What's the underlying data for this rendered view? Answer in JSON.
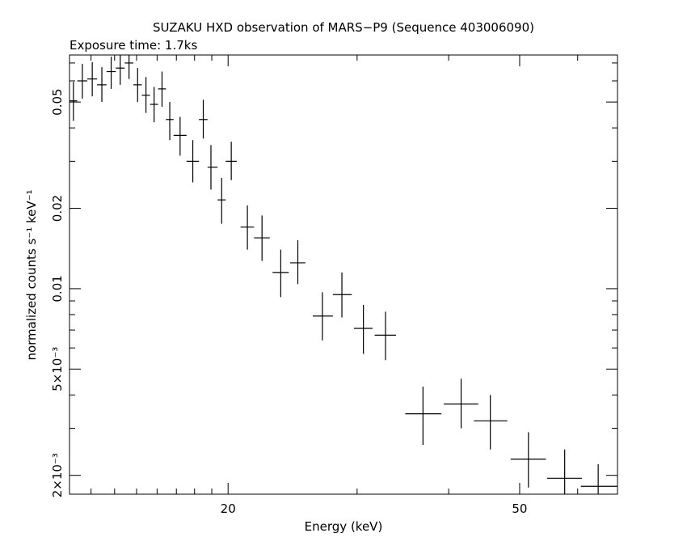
{
  "chart_data": {
    "type": "scatter",
    "title": "SUZAKU HXD observation of MARS−P9 (Sequence 403006090)",
    "subtitle": "Exposure time: 1.7ks",
    "xlabel": "Energy (keV)",
    "ylabel": "normalized counts s⁻¹ keV⁻¹",
    "x_scale": "log",
    "y_scale": "log",
    "xlim": [
      12.15,
      68.0
    ],
    "ylim": [
      0.0017,
      0.075
    ],
    "x_ticks": [
      {
        "value": 20,
        "label": "20"
      },
      {
        "value": 50,
        "label": "50"
      }
    ],
    "y_ticks": [
      {
        "value": 0.002,
        "label": "2×10⁻³"
      },
      {
        "value": 0.005,
        "label": "5×10⁻³"
      },
      {
        "value": 0.01,
        "label": "0.01"
      },
      {
        "value": 0.02,
        "label": "0.02"
      },
      {
        "value": 0.05,
        "label": "0.05"
      }
    ],
    "grid": false,
    "points": [
      {
        "x": 12.3,
        "xlo": 12.15,
        "xhi": 12.45,
        "y": 0.0505,
        "ylo": 0.0425,
        "yhi": 0.0595
      },
      {
        "x": 12.65,
        "xlo": 12.45,
        "xhi": 12.85,
        "y": 0.06,
        "ylo": 0.0515,
        "yhi": 0.0695
      },
      {
        "x": 13.05,
        "xlo": 12.85,
        "xhi": 13.25,
        "y": 0.061,
        "ylo": 0.0525,
        "yhi": 0.0705
      },
      {
        "x": 13.45,
        "xlo": 13.25,
        "xhi": 13.65,
        "y": 0.058,
        "ylo": 0.05,
        "yhi": 0.0675
      },
      {
        "x": 13.85,
        "xlo": 13.65,
        "xhi": 14.05,
        "y": 0.065,
        "ylo": 0.056,
        "yhi": 0.074
      },
      {
        "x": 14.25,
        "xlo": 14.05,
        "xhi": 14.45,
        "y": 0.067,
        "ylo": 0.058,
        "yhi": 0.076
      },
      {
        "x": 14.65,
        "xlo": 14.45,
        "xhi": 14.85,
        "y": 0.07,
        "ylo": 0.061,
        "yhi": 0.076
      },
      {
        "x": 15.05,
        "xlo": 14.85,
        "xhi": 15.25,
        "y": 0.058,
        "ylo": 0.05,
        "yhi": 0.067
      },
      {
        "x": 15.45,
        "xlo": 15.25,
        "xhi": 15.65,
        "y": 0.053,
        "ylo": 0.0455,
        "yhi": 0.062
      },
      {
        "x": 15.85,
        "xlo": 15.65,
        "xhi": 16.05,
        "y": 0.049,
        "ylo": 0.042,
        "yhi": 0.057
      },
      {
        "x": 16.25,
        "xlo": 16.05,
        "xhi": 16.45,
        "y": 0.056,
        "ylo": 0.048,
        "yhi": 0.065
      },
      {
        "x": 16.65,
        "xlo": 16.45,
        "xhi": 16.85,
        "y": 0.043,
        "ylo": 0.036,
        "yhi": 0.05
      },
      {
        "x": 17.2,
        "xlo": 16.85,
        "xhi": 17.55,
        "y": 0.0375,
        "ylo": 0.0315,
        "yhi": 0.044
      },
      {
        "x": 17.9,
        "xlo": 17.55,
        "xhi": 18.25,
        "y": 0.03,
        "ylo": 0.025,
        "yhi": 0.036
      },
      {
        "x": 18.5,
        "xlo": 18.25,
        "xhi": 18.75,
        "y": 0.043,
        "ylo": 0.0365,
        "yhi": 0.051
      },
      {
        "x": 18.95,
        "xlo": 18.75,
        "xhi": 19.35,
        "y": 0.0285,
        "ylo": 0.0235,
        "yhi": 0.0345
      },
      {
        "x": 19.6,
        "xlo": 19.35,
        "xhi": 19.85,
        "y": 0.0215,
        "ylo": 0.0175,
        "yhi": 0.026
      },
      {
        "x": 20.2,
        "xlo": 19.85,
        "xhi": 20.55,
        "y": 0.03,
        "ylo": 0.0255,
        "yhi": 0.0355
      },
      {
        "x": 21.25,
        "xlo": 20.8,
        "xhi": 21.7,
        "y": 0.017,
        "ylo": 0.014,
        "yhi": 0.0205
      },
      {
        "x": 22.25,
        "xlo": 21.7,
        "xhi": 22.8,
        "y": 0.0155,
        "ylo": 0.0127,
        "yhi": 0.0188
      },
      {
        "x": 23.6,
        "xlo": 23.0,
        "xhi": 24.2,
        "y": 0.0115,
        "ylo": 0.0093,
        "yhi": 0.014
      },
      {
        "x": 24.9,
        "xlo": 24.3,
        "xhi": 25.5,
        "y": 0.0125,
        "ylo": 0.0104,
        "yhi": 0.0152
      },
      {
        "x": 26.9,
        "xlo": 26.1,
        "xhi": 27.8,
        "y": 0.0079,
        "ylo": 0.0064,
        "yhi": 0.0097
      },
      {
        "x": 28.6,
        "xlo": 27.8,
        "xhi": 29.5,
        "y": 0.0095,
        "ylo": 0.0078,
        "yhi": 0.0115
      },
      {
        "x": 30.6,
        "xlo": 29.7,
        "xhi": 31.5,
        "y": 0.0071,
        "ylo": 0.0057,
        "yhi": 0.0087
      },
      {
        "x": 32.8,
        "xlo": 31.7,
        "xhi": 33.9,
        "y": 0.0067,
        "ylo": 0.0054,
        "yhi": 0.0082
      },
      {
        "x": 36.9,
        "xlo": 34.9,
        "xhi": 39.1,
        "y": 0.0034,
        "ylo": 0.0026,
        "yhi": 0.0043
      },
      {
        "x": 41.6,
        "xlo": 39.4,
        "xhi": 43.9,
        "y": 0.0037,
        "ylo": 0.003,
        "yhi": 0.0046
      },
      {
        "x": 45.6,
        "xlo": 43.3,
        "xhi": 48.1,
        "y": 0.0032,
        "ylo": 0.0025,
        "yhi": 0.004
      },
      {
        "x": 51.4,
        "xlo": 48.6,
        "xhi": 54.3,
        "y": 0.0023,
        "ylo": 0.0018,
        "yhi": 0.0029
      },
      {
        "x": 57.6,
        "xlo": 54.5,
        "xhi": 60.8,
        "y": 0.00195,
        "ylo": 0.0017,
        "yhi": 0.0025
      },
      {
        "x": 64.0,
        "xlo": 60.6,
        "xhi": 68.0,
        "y": 0.00182,
        "ylo": 0.0017,
        "yhi": 0.0022
      }
    ]
  }
}
